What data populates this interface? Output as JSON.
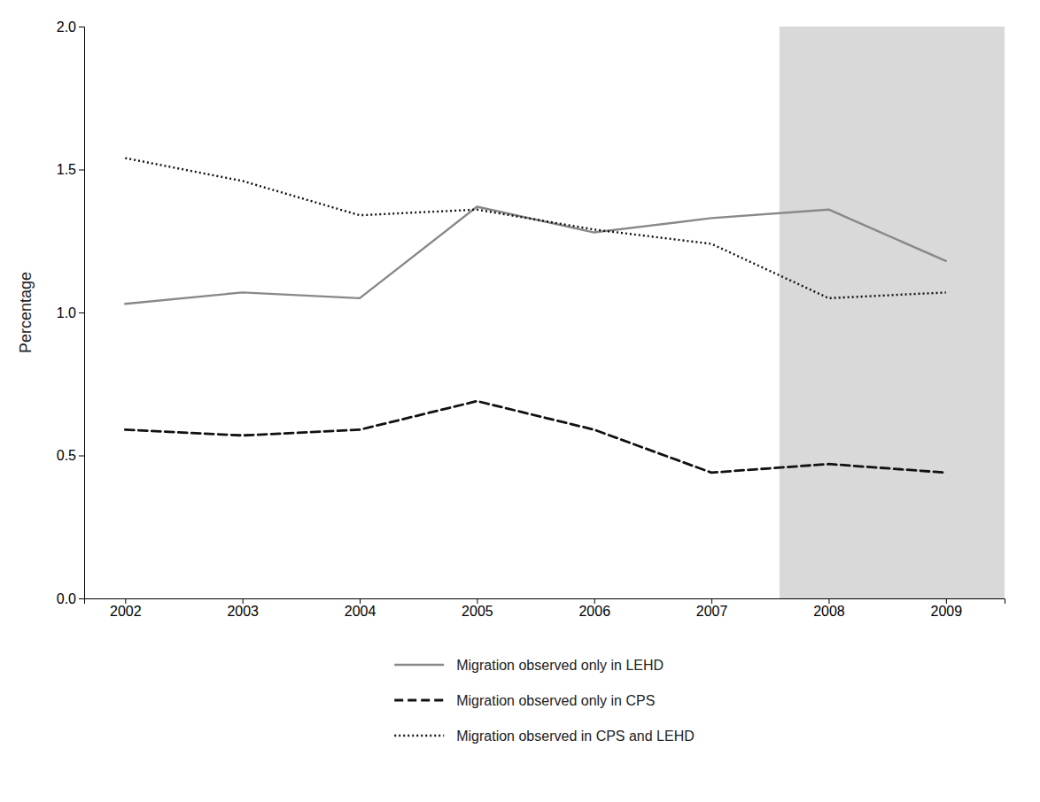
{
  "chart_data": {
    "type": "line",
    "ylabel": "Percentage",
    "x": [
      2002,
      2003,
      2004,
      2005,
      2006,
      2007,
      2008,
      2009
    ],
    "series": [
      {
        "name": "Migration observed only in LEHD",
        "color": "#888888",
        "line_style": "solid",
        "values": [
          1.03,
          1.07,
          1.05,
          1.37,
          1.28,
          1.33,
          1.36,
          1.18
        ]
      },
      {
        "name": "Migration observed only in CPS",
        "color": "#111111",
        "line_style": "dashed",
        "values": [
          0.59,
          0.57,
          0.59,
          0.69,
          0.59,
          0.44,
          0.47,
          0.44
        ]
      },
      {
        "name": "Migration observed in CPS and LEHD",
        "color": "#111111",
        "line_style": "dotted",
        "values": [
          1.54,
          1.46,
          1.34,
          1.36,
          1.29,
          1.24,
          1.05,
          1.07
        ]
      }
    ],
    "shaded_region": {
      "xlim": [
        2007.58,
        2009.5
      ],
      "color": "#d9d9d9"
    },
    "xlim": [
      2001.65,
      2009.5
    ],
    "xticks": [
      2002,
      2003,
      2004,
      2005,
      2006,
      2007,
      2008,
      2009
    ],
    "ylim": [
      0.0,
      2.0
    ],
    "yticks": [
      {
        "value": 0.0,
        "label": "0.0"
      },
      0.5,
      {
        "value": 1.0,
        "label": "1.0"
      },
      1.5,
      {
        "value": 2.0,
        "label": "2.0"
      }
    ],
    "grid": false,
    "legend": "bottom"
  }
}
